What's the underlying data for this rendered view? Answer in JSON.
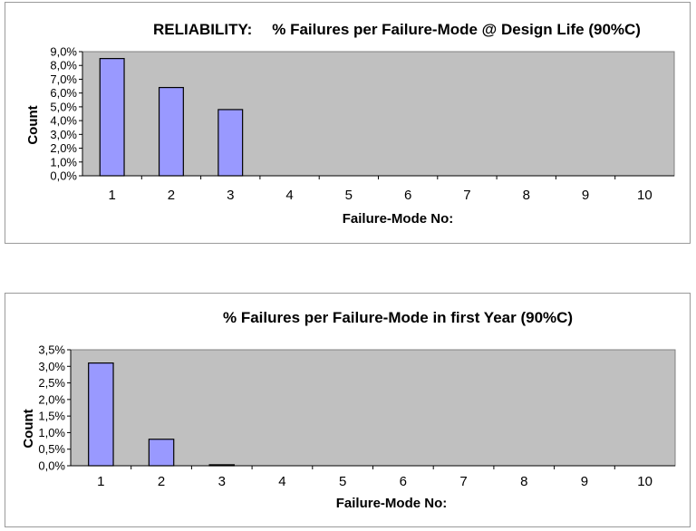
{
  "chart_data": [
    {
      "type": "bar",
      "title_prefix": "RELIABILITY:",
      "title": "% Failures per Failure-Mode @ Design Life (90%C)",
      "xlabel": "Failure-Mode No:",
      "ylabel": "Count",
      "categories": [
        "1",
        "2",
        "3",
        "4",
        "5",
        "6",
        "7",
        "8",
        "9",
        "10"
      ],
      "values": [
        8.5,
        6.4,
        4.8,
        0,
        0,
        0,
        0,
        0,
        0,
        0
      ],
      "ylim": [
        0,
        9
      ],
      "yticks": [
        0,
        1,
        2,
        3,
        4,
        5,
        6,
        7,
        8,
        9
      ],
      "ytick_labels": [
        "0,0%",
        "1,0%",
        "2,0%",
        "3,0%",
        "4,0%",
        "5,0%",
        "6,0%",
        "7,0%",
        "8,0%",
        "9,0%"
      ],
      "grid": false,
      "legend": "none"
    },
    {
      "type": "bar",
      "title": "% Failures per Failure-Mode in first Year (90%C)",
      "xlabel": "Failure-Mode No:",
      "ylabel": "Count",
      "categories": [
        "1",
        "2",
        "3",
        "4",
        "5",
        "6",
        "7",
        "8",
        "9",
        "10"
      ],
      "values": [
        3.1,
        0.8,
        0.03,
        0,
        0,
        0,
        0,
        0,
        0,
        0
      ],
      "ylim": [
        0,
        3.5
      ],
      "yticks": [
        0,
        0.5,
        1,
        1.5,
        2,
        2.5,
        3,
        3.5
      ],
      "ytick_labels": [
        "0,0%",
        "0,5%",
        "1,0%",
        "1,5%",
        "2,0%",
        "2,5%",
        "3,0%",
        "3,5%"
      ],
      "grid": false,
      "legend": "none"
    }
  ],
  "colors": {
    "plot_background": "#c0c0c0",
    "bar_fill": "#9999ff",
    "bar_stroke": "#000000",
    "panel_border": "#9a9a9a"
  }
}
